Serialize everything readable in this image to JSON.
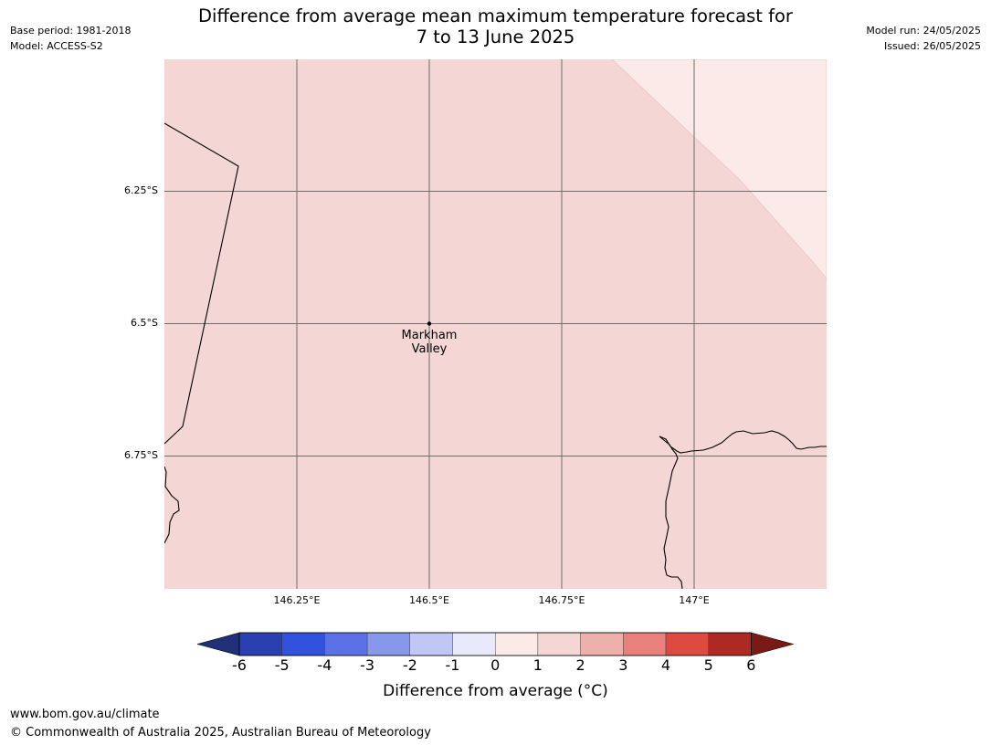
{
  "header": {
    "base_period": "Base period: 1981-2018",
    "model": "Model: ACCESS-S2",
    "title_line1": "Difference from average mean maximum temperature forecast for",
    "title_line2": "7 to 13 June 2025",
    "model_run": "Model run: 24/05/2025",
    "issued": "Issued: 26/05/2025"
  },
  "map": {
    "lat_labels": [
      "6.25°S",
      "6.5°S",
      "6.75°S"
    ],
    "lon_labels": [
      "146.25°E",
      "146.5°E",
      "146.75°E",
      "147°E"
    ],
    "place": {
      "name_line1": "Markham",
      "name_line2": "Valley"
    },
    "region_fill_main": "#f4d6d4",
    "region_fill_ne": "#fbeae8"
  },
  "colorbar": {
    "ticks": [
      "-6",
      "-5",
      "-4",
      "-3",
      "-2",
      "-1",
      "0",
      "1",
      "2",
      "3",
      "4",
      "5",
      "6"
    ],
    "label": "Difference from average (°C)",
    "colors": {
      "below_min": "#1f2f78",
      "bins": [
        "#2a3fb0",
        "#3152dd",
        "#5a72e6",
        "#8697ec",
        "#c0c7f5",
        "#e8eafc",
        "#fbeae8",
        "#f4d6d4",
        "#eeb0ab",
        "#e8817b",
        "#dd4a3f",
        "#ad2921"
      ],
      "above_max": "#7a1a15"
    }
  },
  "footer": {
    "website": "www.bom.gov.au/climate",
    "copyright": "© Commonwealth of Australia 2025, Australian Bureau of Meteorology"
  }
}
